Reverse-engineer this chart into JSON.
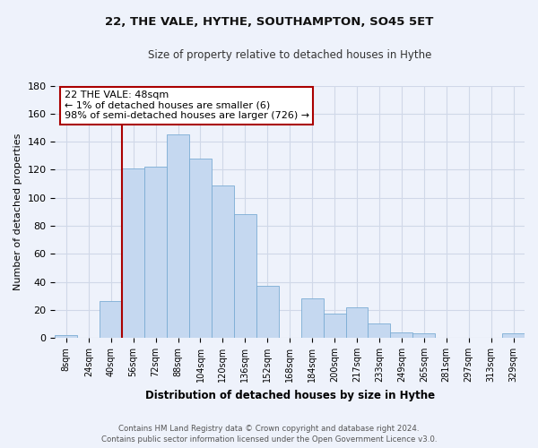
{
  "title1": "22, THE VALE, HYTHE, SOUTHAMPTON, SO45 5ET",
  "title2": "Size of property relative to detached houses in Hythe",
  "xlabel": "Distribution of detached houses by size in Hythe",
  "ylabel": "Number of detached properties",
  "categories": [
    "8sqm",
    "24sqm",
    "40sqm",
    "56sqm",
    "72sqm",
    "88sqm",
    "104sqm",
    "120sqm",
    "136sqm",
    "152sqm",
    "168sqm",
    "184sqm",
    "200sqm",
    "217sqm",
    "233sqm",
    "249sqm",
    "265sqm",
    "281sqm",
    "297sqm",
    "313sqm",
    "329sqm"
  ],
  "values": [
    2,
    0,
    26,
    121,
    122,
    145,
    128,
    109,
    88,
    37,
    0,
    28,
    17,
    22,
    10,
    4,
    3,
    0,
    0,
    0,
    3
  ],
  "bar_color": "#c5d8f0",
  "bar_edge_color": "#7bacd4",
  "grid_color": "#d0d8e8",
  "vline_x_idx": 2.5,
  "vline_color": "#aa0000",
  "annotation_title": "22 THE VALE: 48sqm",
  "annotation_line1": "← 1% of detached houses are smaller (6)",
  "annotation_line2": "98% of semi-detached houses are larger (726) →",
  "annotation_box_color": "#ffffff",
  "annotation_box_edge": "#aa0000",
  "footer_line1": "Contains HM Land Registry data © Crown copyright and database right 2024.",
  "footer_line2": "Contains public sector information licensed under the Open Government Licence v3.0.",
  "ylim": [
    0,
    180
  ],
  "yticks": [
    0,
    20,
    40,
    60,
    80,
    100,
    120,
    140,
    160,
    180
  ],
  "bg_color": "#eef2fb"
}
